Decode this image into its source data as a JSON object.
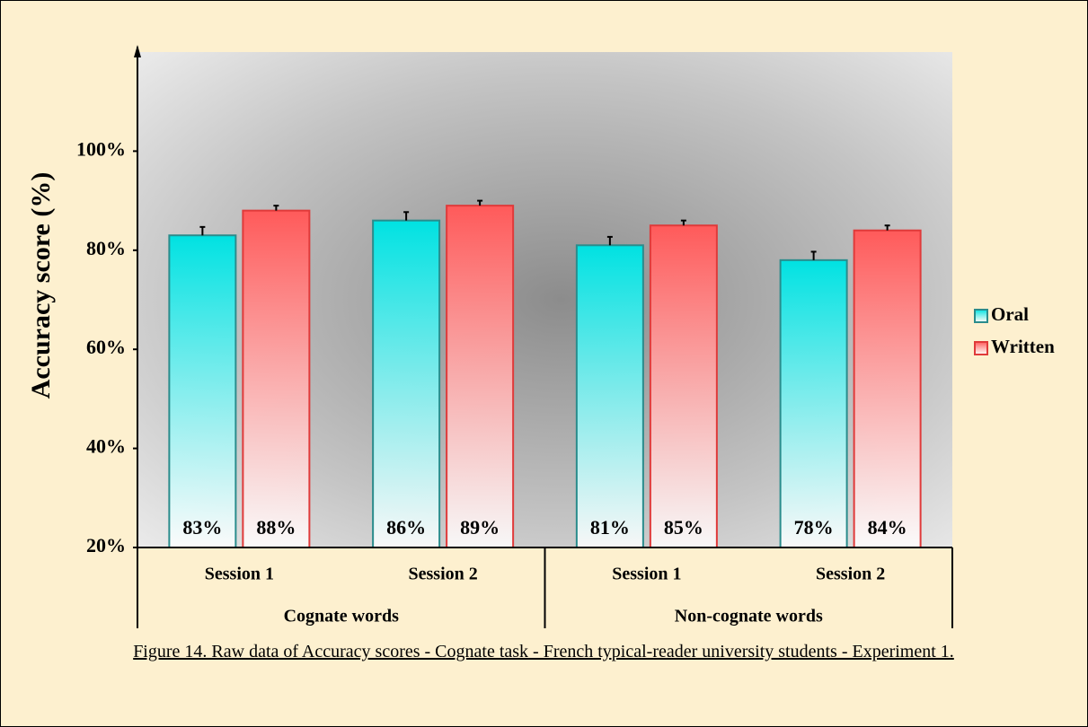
{
  "chart_data": {
    "type": "bar",
    "y_label": "Accuracy score (%)",
    "categories": [
      "Session 1",
      "Session 2",
      "Session 1",
      "Session 2"
    ],
    "groups": [
      "Cognate words",
      "Non-cognate words"
    ],
    "series": [
      {
        "name": "Oral",
        "color": "#00e2e2",
        "values": [
          83,
          86,
          81,
          78
        ],
        "value_labels": [
          "83%",
          "86%",
          "81%",
          "78%"
        ],
        "errors": [
          1.7,
          1.7,
          1.7,
          1.7
        ]
      },
      {
        "name": "Written",
        "color": "#ff5a5a",
        "values": [
          88,
          89,
          85,
          84
        ],
        "value_labels": [
          "88%",
          "89%",
          "85%",
          "84%"
        ],
        "errors": [
          1.0,
          1.0,
          1.0,
          1.0
        ]
      }
    ],
    "ylim": [
      20,
      120
    ],
    "yticks": [
      {
        "value": 20,
        "label": "20%"
      },
      {
        "value": 40,
        "label": "40%"
      },
      {
        "value": 60,
        "label": "60%"
      },
      {
        "value": 80,
        "label": "80%"
      },
      {
        "value": 100,
        "label": "100%"
      }
    ],
    "legend": "right",
    "caption": "Figure 14. Raw data of Accuracy scores - Cognate task - French typical-reader university students - Experiment 1."
  }
}
